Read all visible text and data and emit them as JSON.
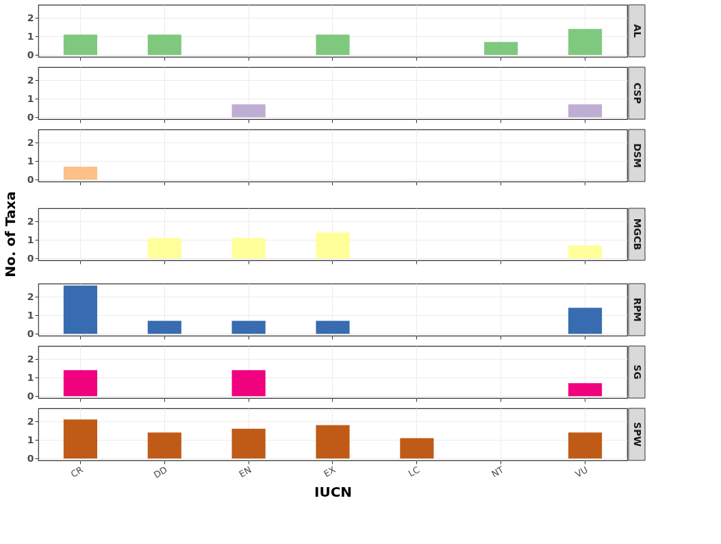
{
  "chart_data": [
    {
      "type": "bar",
      "title": "AL",
      "categories": [
        "CR",
        "DD",
        "EN",
        "EX",
        "LC",
        "NT",
        "VU"
      ],
      "values": [
        1.1,
        1.1,
        null,
        1.1,
        null,
        0.7,
        1.4
      ],
      "color": "#7fc97f",
      "ylim": [
        -0.1,
        2.7
      ],
      "yticks": [
        0,
        1,
        2
      ],
      "grid": true,
      "tick_labels": "y"
    },
    {
      "type": "bar",
      "title": "CSP",
      "categories": [
        "CR",
        "DD",
        "EN",
        "EX",
        "LC",
        "NT",
        "VU"
      ],
      "values": [
        null,
        null,
        0.7,
        null,
        null,
        null,
        0.7
      ],
      "color": "#beaed4",
      "ylim": [
        -0.1,
        2.7
      ],
      "yticks": [
        0,
        1,
        2
      ],
      "grid": true,
      "tick_labels": "y"
    },
    {
      "type": "bar",
      "title": "DSM",
      "categories": [
        "CR",
        "DD",
        "EN",
        "EX",
        "LC",
        "NT",
        "VU"
      ],
      "values": [
        0.7,
        null,
        null,
        null,
        null,
        null,
        null
      ],
      "color": "#fdc086",
      "ylim": [
        -0.1,
        2.7
      ],
      "yticks": [
        0,
        1,
        2
      ],
      "grid": true,
      "tick_labels": "y"
    },
    {
      "type": "bar",
      "title": "MGCB",
      "ylabel": "No. of Taxa",
      "categories": [
        "CR",
        "DD",
        "EN",
        "EX",
        "LC",
        "NT",
        "VU"
      ],
      "values": [
        null,
        1.1,
        1.1,
        1.4,
        null,
        null,
        0.7
      ],
      "color": "#ffff99",
      "ylim": [
        -0.1,
        2.7
      ],
      "yticks": [
        0,
        1,
        2
      ],
      "grid": true,
      "tick_labels": "y"
    },
    {
      "type": "bar",
      "title": "RPM",
      "categories": [
        "CR",
        "DD",
        "EN",
        "EX",
        "LC",
        "NT",
        "VU"
      ],
      "values": [
        2.6,
        0.7,
        0.7,
        0.7,
        null,
        null,
        1.4
      ],
      "color": "#386cb0",
      "ylim": [
        -0.1,
        2.7
      ],
      "yticks": [
        0,
        1,
        2
      ],
      "grid": true,
      "tick_labels": "y"
    },
    {
      "type": "bar",
      "title": "SG",
      "categories": [
        "CR",
        "DD",
        "EN",
        "EX",
        "LC",
        "NT",
        "VU"
      ],
      "values": [
        1.4,
        null,
        1.4,
        null,
        null,
        null,
        0.7
      ],
      "color": "#f0027f",
      "ylim": [
        -0.1,
        2.7
      ],
      "yticks": [
        0,
        1,
        2
      ],
      "grid": true,
      "tick_labels": "y"
    },
    {
      "type": "bar",
      "title": "SPW",
      "xlabel": "IUCN",
      "categories": [
        "CR",
        "DD",
        "EN",
        "EX",
        "LC",
        "NT",
        "VU"
      ],
      "values": [
        2.1,
        1.4,
        1.6,
        1.8,
        1.1,
        null,
        1.4
      ],
      "color": "#bf5b17",
      "ylim": [
        -0.1,
        2.7
      ],
      "yticks": [
        0,
        1,
        2
      ],
      "grid": true
    }
  ]
}
